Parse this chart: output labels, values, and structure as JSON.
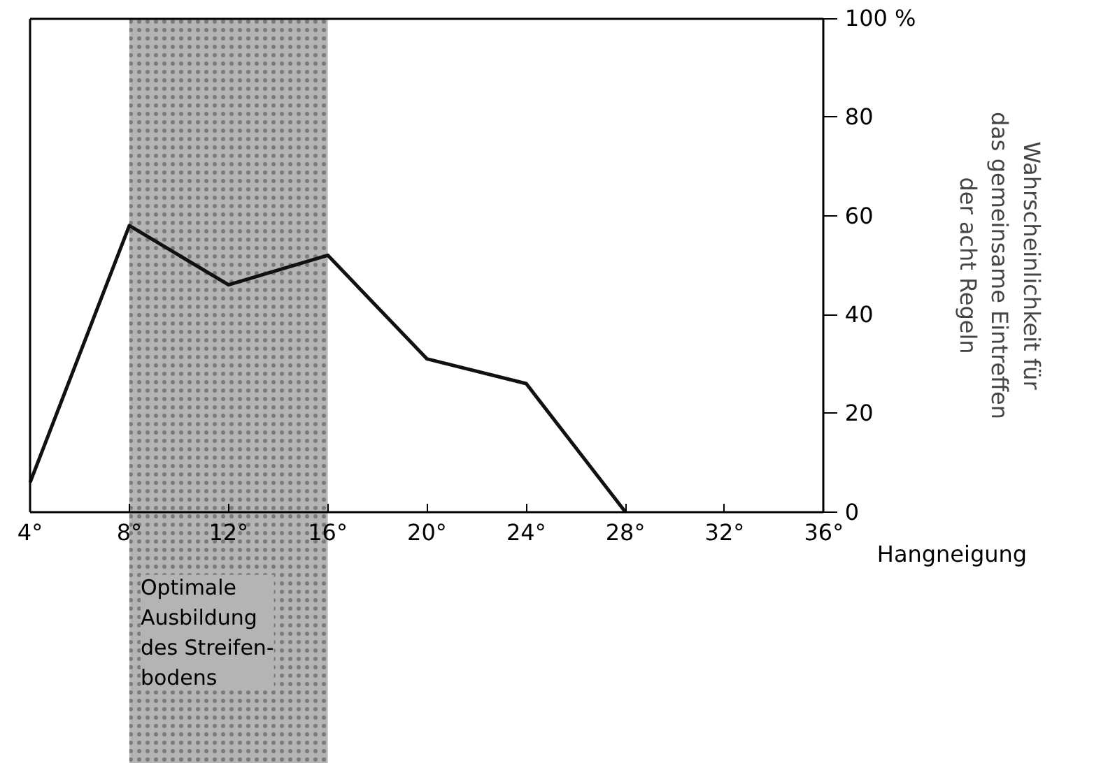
{
  "chart_data": {
    "type": "line",
    "x": [
      4,
      8,
      12,
      16,
      20,
      24,
      28
    ],
    "series": [
      {
        "color": "#111111",
        "values": [
          6,
          58,
          46,
          52,
          31,
          26,
          0
        ]
      }
    ],
    "xlabel": "Hangneigung",
    "ylabel": "Wahrscheinlichkeit für\ndas gemeinsame Eintreffen\nder acht Regeln",
    "xlim": [
      4,
      36
    ],
    "xticks": [
      {
        "value": 4,
        "label": "4°"
      },
      {
        "value": 8,
        "label": "8°"
      },
      {
        "value": 12,
        "label": "12°"
      },
      {
        "value": 16,
        "label": "16°"
      },
      {
        "value": 20,
        "label": "20°"
      },
      {
        "value": 24,
        "label": "24°"
      },
      {
        "value": 28,
        "label": "28°"
      },
      {
        "value": 32,
        "label": "32°"
      },
      {
        "value": 36,
        "label": "36°"
      }
    ],
    "ylim": [
      0,
      100
    ],
    "yticks": [
      0,
      20,
      40,
      60,
      80,
      {
        "value": 100,
        "label": "100 %"
      }
    ],
    "bands": [
      {
        "axis": "x",
        "from": 8,
        "to": 16,
        "label": "Optimale\nAusbildung\ndes Streifen-\nbodens",
        "color": "#b4b4b4"
      }
    ],
    "grid": false,
    "line_style": "solid"
  }
}
